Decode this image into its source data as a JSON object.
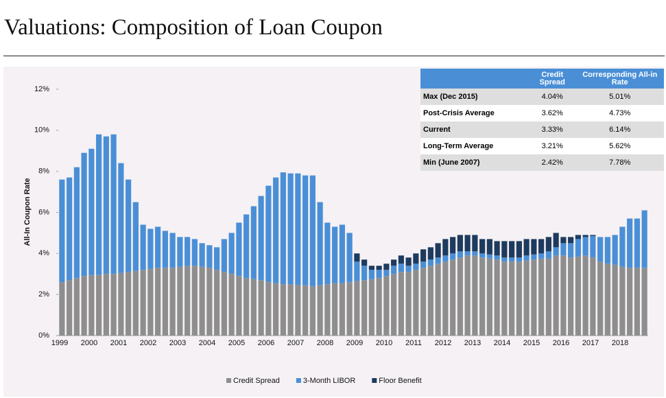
{
  "header": {
    "title": "Valuations: Composition of Loan Coupon"
  },
  "chart_data": {
    "type": "stacked-bar",
    "ylabel": "All-In Coupon Rate",
    "ylim": [
      0,
      12
    ],
    "yticks": [
      {
        "value": 0,
        "label": "0%"
      },
      {
        "value": 2,
        "label": "2%"
      },
      {
        "value": 4,
        "label": "4%"
      },
      {
        "value": 6,
        "label": "6%"
      },
      {
        "value": 8,
        "label": "8%"
      },
      {
        "value": 10,
        "label": "10%"
      },
      {
        "value": 12,
        "label": "12%"
      }
    ],
    "categories": [
      "1999",
      null,
      null,
      null,
      "2000",
      null,
      null,
      null,
      "2001",
      null,
      null,
      null,
      "2002",
      null,
      null,
      null,
      "2003",
      null,
      null,
      null,
      "2004",
      null,
      null,
      null,
      "2005",
      null,
      null,
      null,
      "2006",
      null,
      null,
      null,
      "2007",
      null,
      null,
      null,
      "2008",
      null,
      null,
      null,
      "2009",
      null,
      null,
      null,
      "2010",
      null,
      null,
      null,
      "2011",
      null,
      null,
      null,
      "2012",
      null,
      null,
      null,
      "2013",
      null,
      null,
      null,
      "2014",
      null,
      null,
      null,
      "2015",
      null,
      null,
      null,
      "2016",
      null,
      null,
      null,
      "2017",
      null,
      null,
      null,
      "2018",
      null,
      null,
      null
    ],
    "legend": "bottom",
    "series": [
      {
        "name": "Credit Spread",
        "color": "#8e8e8e",
        "values": [
          2.6,
          2.7,
          2.8,
          2.9,
          2.95,
          2.95,
          3.0,
          3.0,
          3.05,
          3.1,
          3.15,
          3.2,
          3.25,
          3.3,
          3.3,
          3.3,
          3.35,
          3.4,
          3.4,
          3.35,
          3.3,
          3.2,
          3.1,
          3.0,
          2.9,
          2.8,
          2.75,
          2.7,
          2.6,
          2.55,
          2.5,
          2.5,
          2.45,
          2.45,
          2.4,
          2.45,
          2.5,
          2.55,
          2.55,
          2.6,
          2.65,
          2.7,
          2.75,
          2.8,
          2.9,
          3.0,
          3.1,
          3.1,
          3.2,
          3.3,
          3.4,
          3.5,
          3.6,
          3.7,
          3.8,
          3.9,
          3.9,
          3.8,
          3.75,
          3.7,
          3.6,
          3.6,
          3.6,
          3.65,
          3.7,
          3.75,
          3.75,
          3.9,
          3.9,
          3.8,
          3.85,
          3.9,
          3.8,
          3.6,
          3.5,
          3.45,
          3.35,
          3.3,
          3.3,
          3.3
        ]
      },
      {
        "name": "3-Month LIBOR",
        "color": "#4a8fd6",
        "values": [
          5.0,
          5.0,
          5.4,
          6.0,
          6.15,
          6.85,
          6.7,
          6.8,
          5.35,
          4.5,
          3.35,
          2.2,
          1.95,
          2.0,
          1.8,
          1.7,
          1.45,
          1.4,
          1.3,
          1.15,
          1.1,
          1.1,
          1.6,
          2.0,
          2.6,
          3.1,
          3.55,
          4.1,
          4.7,
          5.15,
          5.45,
          5.4,
          5.45,
          5.35,
          5.4,
          4.05,
          3.0,
          2.75,
          2.85,
          2.4,
          0.95,
          0.7,
          0.45,
          0.4,
          0.3,
          0.4,
          0.4,
          0.3,
          0.3,
          0.3,
          0.3,
          0.3,
          0.3,
          0.3,
          0.3,
          0.2,
          0.2,
          0.2,
          0.2,
          0.2,
          0.2,
          0.2,
          0.2,
          0.25,
          0.25,
          0.25,
          0.35,
          0.4,
          0.6,
          0.7,
          0.85,
          0.9,
          1.05,
          1.2,
          1.3,
          1.45,
          1.95,
          2.4,
          2.4,
          2.8
        ]
      },
      {
        "name": "Floor Benefit",
        "color": "#1e3b5e",
        "values": [
          0,
          0,
          0,
          0,
          0,
          0,
          0,
          0,
          0,
          0,
          0,
          0,
          0,
          0,
          0,
          0,
          0,
          0,
          0,
          0,
          0,
          0,
          0,
          0,
          0,
          0,
          0,
          0,
          0,
          0,
          0,
          0,
          0,
          0,
          0,
          0,
          0,
          0,
          0,
          0,
          0.4,
          0.3,
          0.2,
          0.2,
          0.3,
          0.3,
          0.4,
          0.4,
          0.5,
          0.6,
          0.6,
          0.7,
          0.8,
          0.8,
          0.8,
          0.8,
          0.8,
          0.7,
          0.75,
          0.7,
          0.8,
          0.8,
          0.8,
          0.8,
          0.75,
          0.7,
          0.7,
          0.7,
          0.3,
          0.3,
          0.2,
          0.1,
          0.05,
          0,
          0,
          0,
          0,
          0,
          0,
          0
        ]
      }
    ]
  },
  "table": {
    "columns": [
      "Credit Spread",
      "Corresponding All-in Rate"
    ],
    "rows": [
      [
        "Max (Dec 2015)",
        "4.04%",
        "5.01%"
      ],
      [
        "Post-Crisis Average",
        "3.62%",
        "4.73%"
      ],
      [
        "Current",
        "3.33%",
        "6.14%"
      ],
      [
        "Long-Term Average",
        "3.21%",
        "5.62%"
      ],
      [
        "Min (June 2007)",
        "2.42%",
        "7.78%"
      ]
    ]
  }
}
